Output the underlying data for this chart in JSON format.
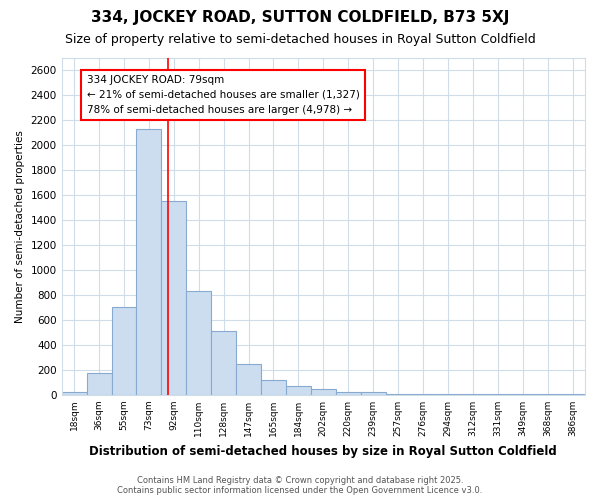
{
  "title": "334, JOCKEY ROAD, SUTTON COLDFIELD, B73 5XJ",
  "subtitle": "Size of property relative to semi-detached houses in Royal Sutton Coldfield",
  "xlabel": "Distribution of semi-detached houses by size in Royal Sutton Coldfield",
  "ylabel": "Number of semi-detached properties",
  "categories": [
    "18sqm",
    "36sqm",
    "55sqm",
    "73sqm",
    "92sqm",
    "110sqm",
    "128sqm",
    "147sqm",
    "165sqm",
    "184sqm",
    "202sqm",
    "220sqm",
    "239sqm",
    "257sqm",
    "276sqm",
    "294sqm",
    "312sqm",
    "331sqm",
    "349sqm",
    "368sqm",
    "386sqm"
  ],
  "values": [
    20,
    175,
    700,
    2130,
    1550,
    830,
    510,
    250,
    120,
    70,
    50,
    20,
    20,
    5,
    5,
    5,
    5,
    5,
    5,
    5,
    5
  ],
  "bar_color": "#ccddf0",
  "bar_edge_color": "#88aad0",
  "ylim": [
    0,
    2700
  ],
  "yticks": [
    0,
    200,
    400,
    600,
    800,
    1000,
    1200,
    1400,
    1600,
    1800,
    2000,
    2200,
    2400,
    2600
  ],
  "red_line_x": 3.75,
  "annotation_text": "334 JOCKEY ROAD: 79sqm\n← 21% of semi-detached houses are smaller (1,327)\n78% of semi-detached houses are larger (4,978) →",
  "footnote": "Contains HM Land Registry data © Crown copyright and database right 2025.\nContains public sector information licensed under the Open Government Licence v3.0.",
  "background_color": "#ffffff",
  "plot_background": "#ffffff",
  "title_fontsize": 11,
  "subtitle_fontsize": 9,
  "annotation_box_color": "white",
  "annotation_box_edge": "red",
  "grid_color": "#d0dce8"
}
